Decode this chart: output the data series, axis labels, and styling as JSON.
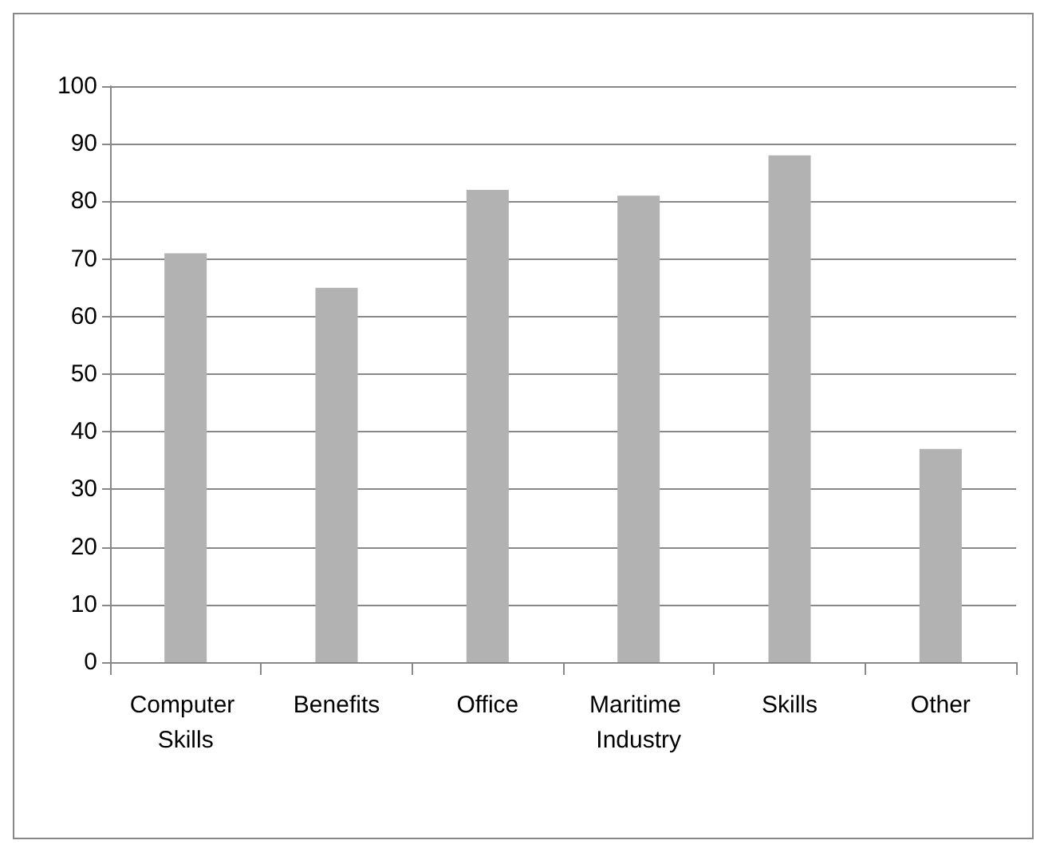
{
  "chart_data": {
    "type": "bar",
    "categories": [
      "Computer Skills",
      "Benefits",
      "Office",
      "Maritime Industry",
      "Skills",
      "Other"
    ],
    "values": [
      71,
      65,
      82,
      81,
      88,
      37
    ],
    "color": "#b2b2b2",
    "ylim": [
      0,
      100
    ],
    "yticks": [
      0,
      10,
      20,
      30,
      40,
      50,
      60,
      70,
      80,
      90,
      100
    ],
    "grid": "y"
  }
}
